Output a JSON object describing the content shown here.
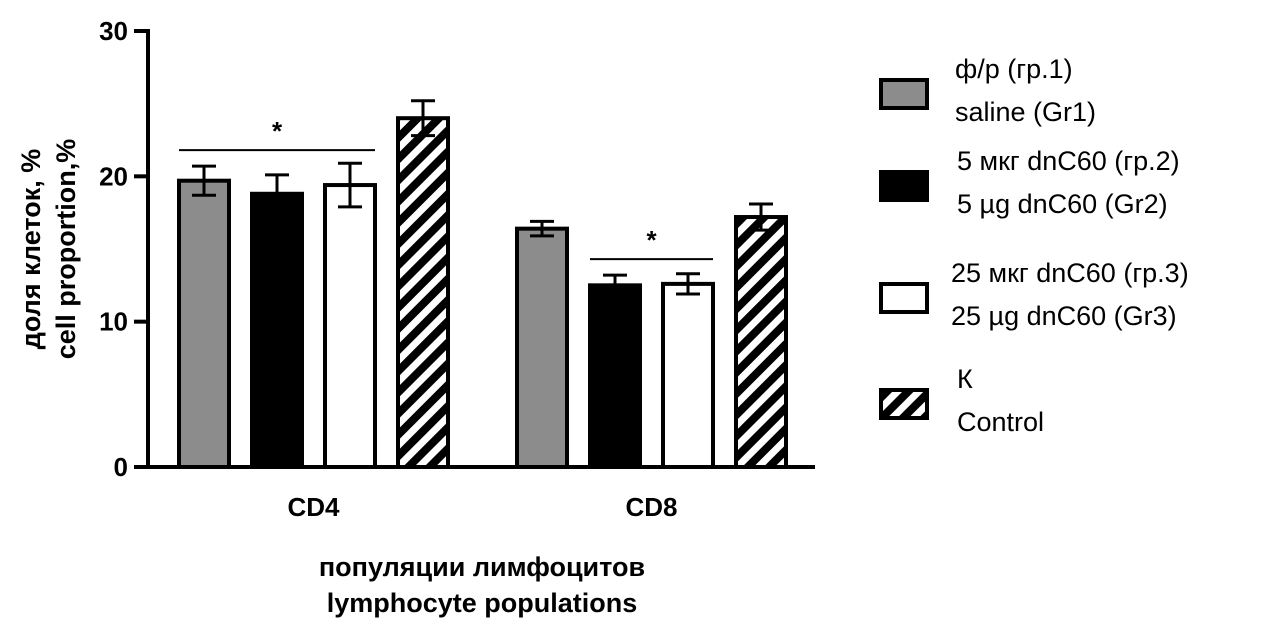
{
  "chart_data": {
    "type": "bar",
    "title": "",
    "xlabel": [
      "популяции лимфоцитов",
      "lymphocyte populations"
    ],
    "ylabel": [
      "доля клеток, %",
      "cell proportion,%"
    ],
    "ylim": [
      0,
      30
    ],
    "yticks": [
      0,
      10,
      20,
      30
    ],
    "grid": false,
    "legend_position": "right",
    "categories": [
      "CD4",
      "CD8"
    ],
    "series": [
      {
        "name": [
          "ф/р (гр.1)",
          "saline (Gr1)"
        ],
        "values": [
          19.7,
          16.4
        ],
        "errors": [
          1.0,
          0.5
        ],
        "fill": "#8c8c8c"
      },
      {
        "name": [
          "5 мкг dnC60 (гр.2)",
          "5 µg dnC60 (Gr2)"
        ],
        "values": [
          18.8,
          12.5
        ],
        "errors": [
          1.3,
          0.7
        ],
        "fill": "#000000"
      },
      {
        "name": [
          "25 мкг dnC60 (гр.3)",
          "25 µg dnC60 (Gr3)"
        ],
        "values": [
          19.4,
          12.6
        ],
        "errors": [
          1.5,
          0.7
        ],
        "fill": "#ffffff"
      },
      {
        "name": [
          "К",
          "Control"
        ],
        "values": [
          24.0,
          17.2
        ],
        "errors": [
          1.2,
          0.9
        ],
        "fill": "hatch"
      }
    ],
    "annotations": [
      {
        "text": "*",
        "category": "CD4",
        "from_series": 0,
        "to_series": 2,
        "y": 21.8
      },
      {
        "text": "*",
        "category": "CD8",
        "from_series": 1,
        "to_series": 2,
        "y": 14.3
      }
    ]
  }
}
